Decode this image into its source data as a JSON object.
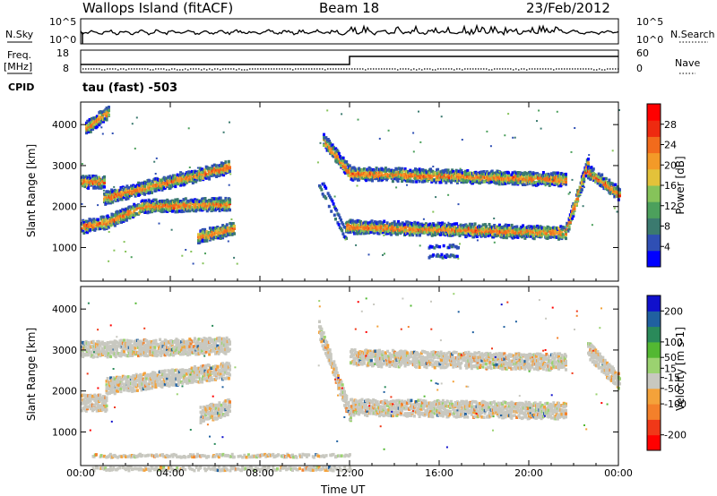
{
  "header": {
    "station": "Wallops Island (fitACF)",
    "beam": "Beam 18",
    "date": "23/Feb/2012"
  },
  "status": {
    "left_labels": {
      "nsky": "N.Sky",
      "freq": "Freq.",
      "freq_unit": "[MHz]",
      "cpid": "CPID"
    },
    "right_labels": {
      "nsearch": "N.Search",
      "nave": "Nave"
    },
    "noise_ticks_left": [
      "10^5",
      "10^0"
    ],
    "noise_ticks_right": [
      "10^5",
      "10^0"
    ],
    "freq_ticks": [
      "18",
      "8"
    ],
    "nave_ticks": [
      "60",
      "0"
    ],
    "cpid_text": "tau (fast) -503"
  },
  "chart_data": [
    {
      "type": "heatmap",
      "title": "",
      "ylabel": "Slant Range [km]",
      "xlabel": "",
      "x_ticks": [
        "00:00",
        "04:00",
        "08:00",
        "12:00",
        "16:00",
        "20:00",
        "00:00"
      ],
      "y_ticks": [
        1000,
        2000,
        3000,
        4000
      ],
      "ylim": [
        180,
        4550
      ],
      "xlim_hours": [
        0,
        24
      ],
      "colorbar": {
        "label": "Power [dB]",
        "ticks": [
          4,
          8,
          12,
          16,
          20,
          24,
          28
        ],
        "range": [
          0,
          32
        ],
        "colors": [
          "#0000ff",
          "#2f4fb4",
          "#3b7a6f",
          "#4ca05c",
          "#86c35a",
          "#e3c23a",
          "#f39a28",
          "#f26b1c",
          "#ee2a10",
          "#ff0000"
        ]
      },
      "series": [
        {
          "h0": 0.0,
          "h1": 1.1,
          "r0": 1500,
          "r1": 1600
        },
        {
          "h0": 1.1,
          "h1": 2.8,
          "r0": 1600,
          "r1": 2000
        },
        {
          "h0": 2.8,
          "h1": 6.6,
          "r0": 2000,
          "r1": 2050
        },
        {
          "h0": 0.0,
          "h1": 1.0,
          "r0": 2600,
          "r1": 2600
        },
        {
          "h0": 1.0,
          "h1": 2.8,
          "r0": 2200,
          "r1": 2450
        },
        {
          "h0": 2.8,
          "h1": 6.6,
          "r0": 2450,
          "r1": 2950
        },
        {
          "h0": 0.2,
          "h1": 1.2,
          "r0": 3900,
          "r1": 4300
        },
        {
          "h0": 5.2,
          "h1": 6.8,
          "r0": 1250,
          "r1": 1450
        },
        {
          "h0": 10.6,
          "h1": 11.8,
          "r0": 2600,
          "r1": 1300
        },
        {
          "h0": 11.8,
          "h1": 21.6,
          "r0": 1500,
          "r1": 1350
        },
        {
          "h0": 21.6,
          "h1": 22.6,
          "r0": 1350,
          "r1": 3050
        },
        {
          "h0": 10.8,
          "h1": 12.0,
          "r0": 3600,
          "r1": 2800
        },
        {
          "h0": 12.0,
          "h1": 21.6,
          "r0": 2800,
          "r1": 2650
        },
        {
          "h0": 22.6,
          "h1": 24.0,
          "r0": 2850,
          "r1": 2300
        },
        {
          "h0": 15.5,
          "h1": 16.8,
          "r0": 900,
          "r1": 900
        }
      ]
    },
    {
      "type": "heatmap",
      "title": "",
      "ylabel": "Slant Range [km]",
      "xlabel": "Time UT",
      "x_ticks": [
        "00:00",
        "04:00",
        "08:00",
        "12:00",
        "16:00",
        "20:00",
        "00:00"
      ],
      "y_ticks": [
        1000,
        2000,
        3000,
        4000
      ],
      "ylim": [
        180,
        4550
      ],
      "xlim_hours": [
        0,
        24
      ],
      "colorbar": {
        "label": "Velocity [m s-1]",
        "ticks": [
          200,
          100,
          50,
          15,
          -15,
          -50,
          -100,
          -200
        ],
        "range": [
          -250,
          250
        ],
        "colors": [
          "#ff0000",
          "#f03818",
          "#f4802a",
          "#f4a23a",
          "#c8c8c0",
          "#9bd270",
          "#53b832",
          "#2a8a5a",
          "#2060a0",
          "#1010cc"
        ]
      },
      "series": [
        {
          "h0": 0.0,
          "h1": 1.1,
          "r0": 1700,
          "r1": 1700
        },
        {
          "h0": 1.1,
          "h1": 6.6,
          "r0": 2100,
          "r1": 2500
        },
        {
          "h0": 0.0,
          "h1": 6.6,
          "r0": 3000,
          "r1": 3100
        },
        {
          "h0": 5.3,
          "h1": 6.6,
          "r0": 1400,
          "r1": 1600
        },
        {
          "h0": 10.6,
          "h1": 12.0,
          "r0": 3500,
          "r1": 1400
        },
        {
          "h0": 12.0,
          "h1": 21.6,
          "r0": 1600,
          "r1": 1500
        },
        {
          "h0": 12.0,
          "h1": 21.6,
          "r0": 2800,
          "r1": 2700
        },
        {
          "h0": 22.6,
          "h1": 24.0,
          "r0": 3000,
          "r1": 2200
        },
        {
          "h0": 0.5,
          "h1": 12.0,
          "r0": 250,
          "r1": 250
        }
      ]
    }
  ],
  "colors": {
    "axis": "#000000",
    "grid": "#000000"
  }
}
